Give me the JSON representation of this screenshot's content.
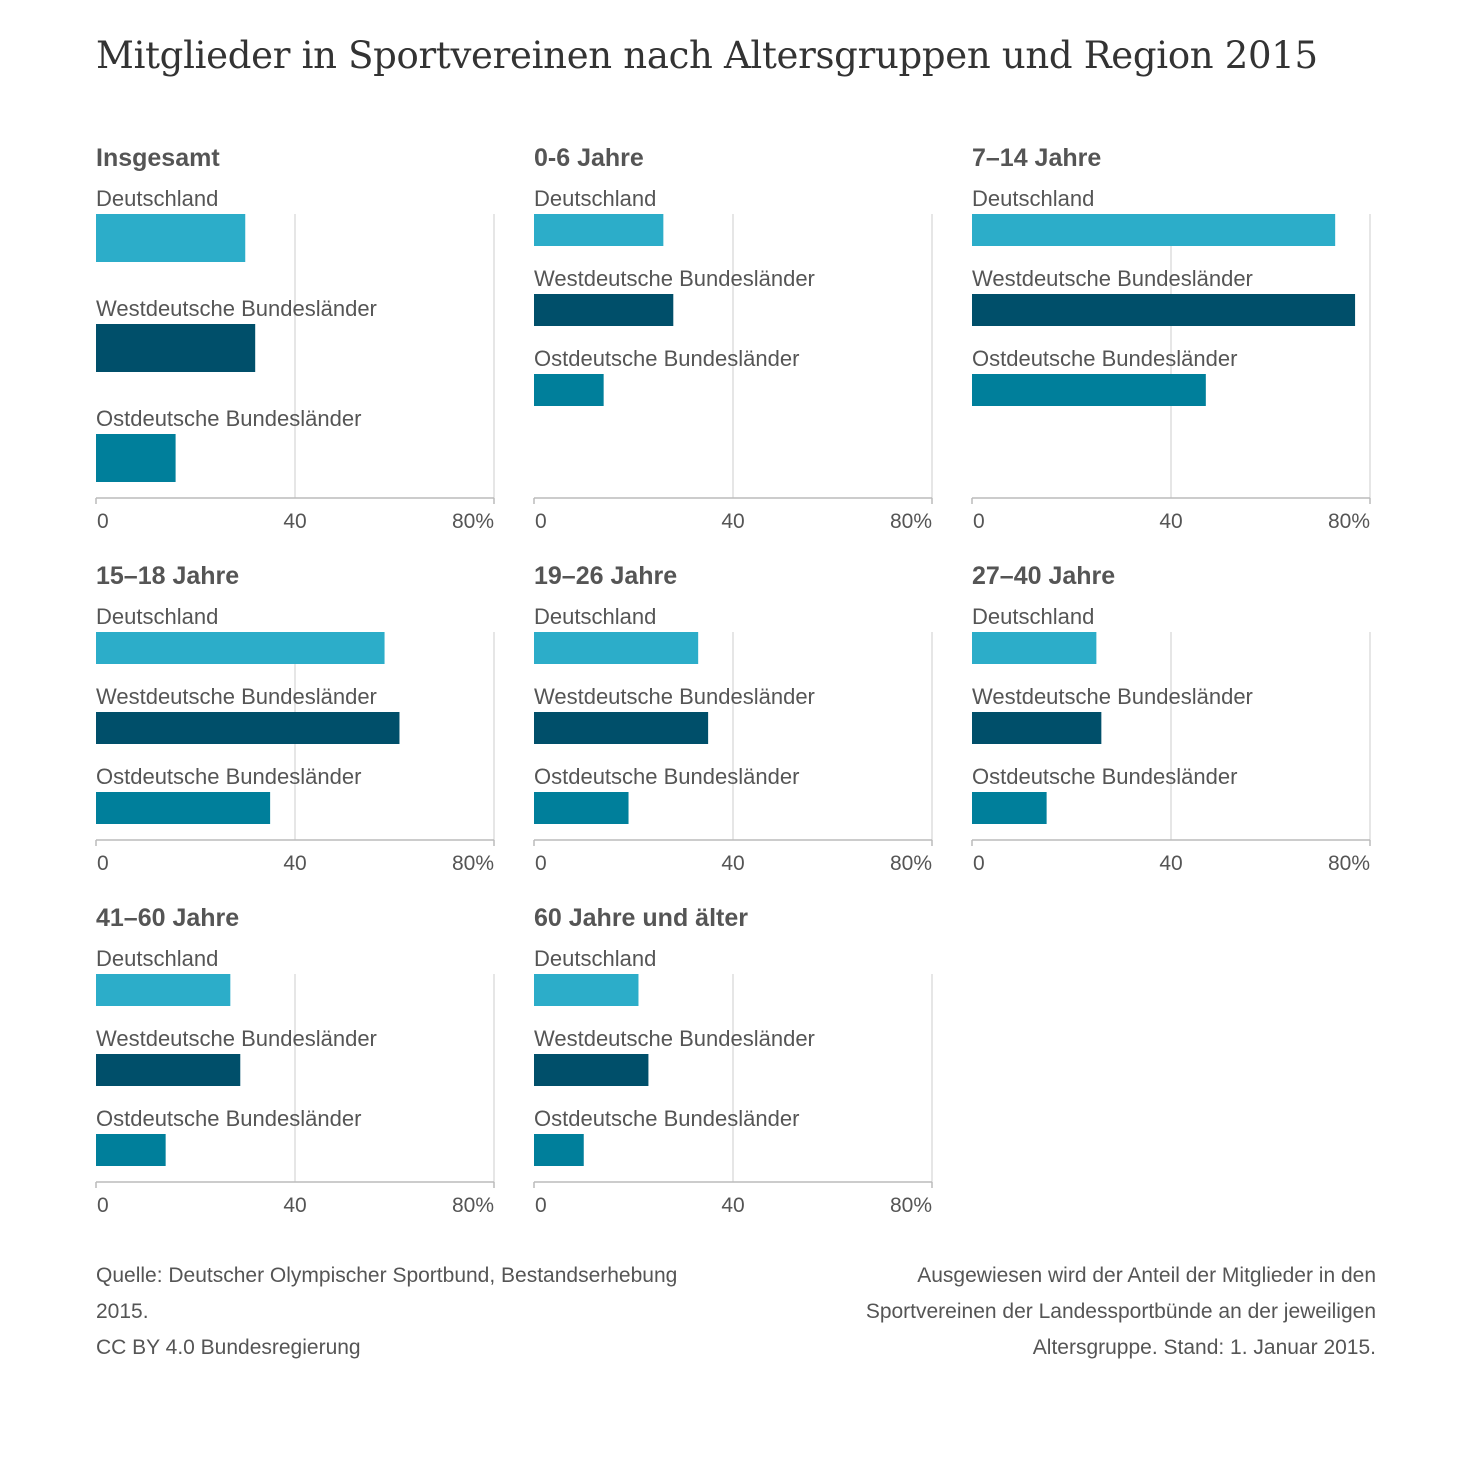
{
  "title": "Mitglieder in Sportvereinen nach Altersgruppen und Region 2015",
  "colors": {
    "Deutschland": "#2cadc9",
    "Westdeutsche Bundesländer": "#004f6a",
    "Ostdeutsche Bundesländer": "#007f9b"
  },
  "chart_data": [
    {
      "type": "bar",
      "title": "Insgesamt",
      "categories": [
        "Deutschland",
        "Westdeutsche Bundesländer",
        "Ostdeutsche Bundesländer"
      ],
      "values": [
        30,
        32,
        16
      ],
      "xlim": [
        0,
        80
      ],
      "ticks": [
        "0",
        "40",
        "80%"
      ]
    },
    {
      "type": "bar",
      "title": "0-6 Jahre",
      "categories": [
        "Deutschland",
        "Westdeutsche Bundesländer",
        "Ostdeutsche Bundesländer"
      ],
      "values": [
        26,
        28,
        14
      ],
      "xlim": [
        0,
        80
      ],
      "ticks": [
        "0",
        "40",
        "80%"
      ]
    },
    {
      "type": "bar",
      "title": "7–14 Jahre",
      "categories": [
        "Deutschland",
        "Westdeutsche Bundesländer",
        "Ostdeutsche Bundesländer"
      ],
      "values": [
        73,
        77,
        47
      ],
      "xlim": [
        0,
        80
      ],
      "ticks": [
        "0",
        "40",
        "80%"
      ]
    },
    {
      "type": "bar",
      "title": "15–18 Jahre",
      "categories": [
        "Deutschland",
        "Westdeutsche Bundesländer",
        "Ostdeutsche Bundesländer"
      ],
      "values": [
        58,
        61,
        35
      ],
      "xlim": [
        0,
        80
      ],
      "ticks": [
        "0",
        "40",
        "80%"
      ]
    },
    {
      "type": "bar",
      "title": "19–26 Jahre",
      "categories": [
        "Deutschland",
        "Westdeutsche Bundesländer",
        "Ostdeutsche Bundesländer"
      ],
      "values": [
        33,
        35,
        19
      ],
      "xlim": [
        0,
        80
      ],
      "ticks": [
        "0",
        "40",
        "80%"
      ]
    },
    {
      "type": "bar",
      "title": "27–40 Jahre",
      "categories": [
        "Deutschland",
        "Westdeutsche Bundesländer",
        "Ostdeutsche Bundesländer"
      ],
      "values": [
        25,
        26,
        15
      ],
      "xlim": [
        0,
        80
      ],
      "ticks": [
        "0",
        "40",
        "80%"
      ]
    },
    {
      "type": "bar",
      "title": "41–60 Jahre",
      "categories": [
        "Deutschland",
        "Westdeutsche Bundesländer",
        "Ostdeutsche Bundesländer"
      ],
      "values": [
        27,
        29,
        14
      ],
      "xlim": [
        0,
        80
      ],
      "ticks": [
        "0",
        "40",
        "80%"
      ]
    },
    {
      "type": "bar",
      "title": "60 Jahre und älter",
      "categories": [
        "Deutschland",
        "Westdeutsche Bundesländer",
        "Ostdeutsche Bundesländer"
      ],
      "values": [
        21,
        23,
        10
      ],
      "xlim": [
        0,
        80
      ],
      "ticks": [
        "0",
        "40",
        "80%"
      ]
    }
  ],
  "footer": {
    "source_line1": "Quelle: Deutscher Olympischer Sportbund, Bestandserhebung",
    "source_line2": "2015.",
    "license": "CC BY 4.0 Bundesregierung",
    "note_line1": "Ausgewiesen wird der Anteil der Mitglieder in den",
    "note_line2": "Sportvereinen der Landessportbünde an der jeweiligen",
    "note_line3": "Altersgruppe. Stand: 1. Januar 2015."
  }
}
